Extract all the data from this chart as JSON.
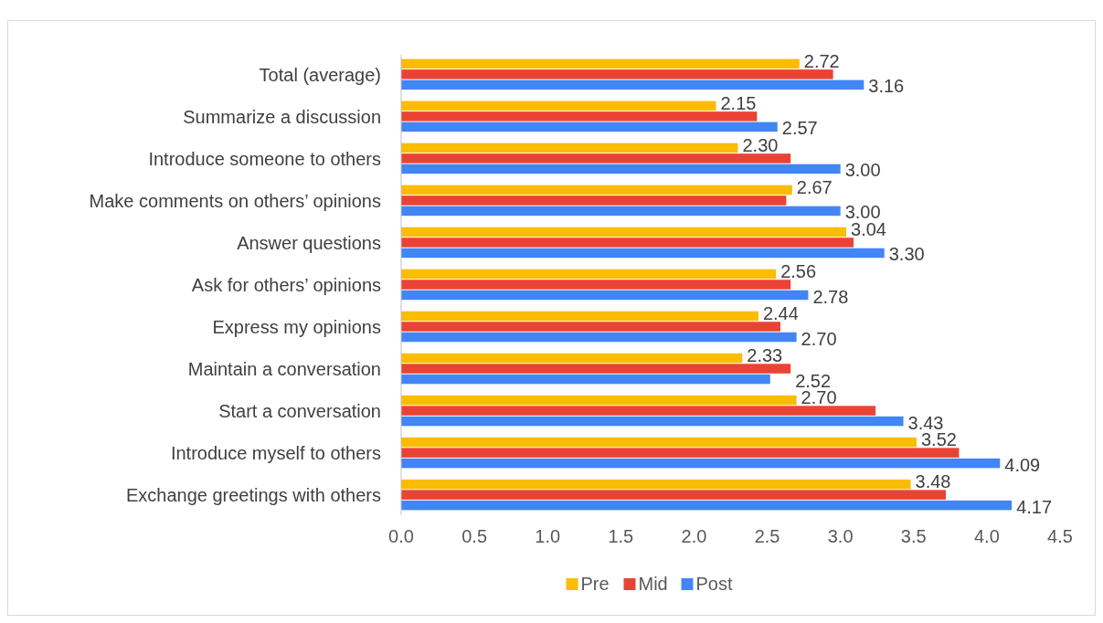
{
  "chart_data": {
    "type": "bar",
    "orientation": "horizontal",
    "categories": [
      "Total (average)",
      "Summarize a discussion",
      "Introduce someone to others",
      "Make comments on others’ opinions",
      "Answer questions",
      "Ask for others’ opinions",
      "Express my opinions",
      "Maintain a conversation ",
      "Start a conversation",
      "Introduce myself to others",
      "Exchange greetings with others"
    ],
    "series": [
      {
        "name": "Pre",
        "color": "#fbbc04",
        "values": [
          2.72,
          2.15,
          2.3,
          2.67,
          3.04,
          2.56,
          2.44,
          2.33,
          2.7,
          3.52,
          3.48
        ],
        "value_labels": [
          "2.72",
          "2.15",
          "2.30",
          "2.67",
          "3.04",
          "2.56",
          "2.44",
          "2.33",
          "2.70",
          "3.52",
          "3.48"
        ]
      },
      {
        "name": "Mid",
        "color": "#ea4335",
        "values": [
          2.95,
          2.43,
          2.66,
          2.63,
          3.09,
          2.66,
          2.59,
          2.66,
          3.24,
          3.81,
          3.72
        ]
      },
      {
        "name": "Post",
        "color": "#4285f4",
        "values": [
          3.16,
          2.57,
          3.0,
          3.0,
          3.3,
          2.78,
          2.7,
          2.52,
          3.43,
          4.09,
          4.17
        ],
        "value_labels": [
          "3.16",
          "2.57",
          "3.00",
          "3.00",
          "3.30",
          "2.78",
          "2.70",
          "2.52",
          "3.43",
          "4.09",
          "4.17"
        ]
      }
    ],
    "xlim": [
      0,
      4.5
    ],
    "xticks": [
      {
        "value": 0,
        "label": "0.0"
      },
      {
        "value": 0.5,
        "label": "0.5"
      },
      {
        "value": 1,
        "label": "1.0"
      },
      {
        "value": 1.5,
        "label": "1.5"
      },
      {
        "value": 2,
        "label": "2.0"
      },
      {
        "value": 2.5,
        "label": "2.5"
      },
      {
        "value": 3,
        "label": "3.0"
      },
      {
        "value": 3.5,
        "label": "3.5"
      },
      {
        "value": 4,
        "label": "4.0"
      },
      {
        "value": 4.5,
        "label": "4.5"
      }
    ],
    "grid": false,
    "legend": "bottom"
  }
}
